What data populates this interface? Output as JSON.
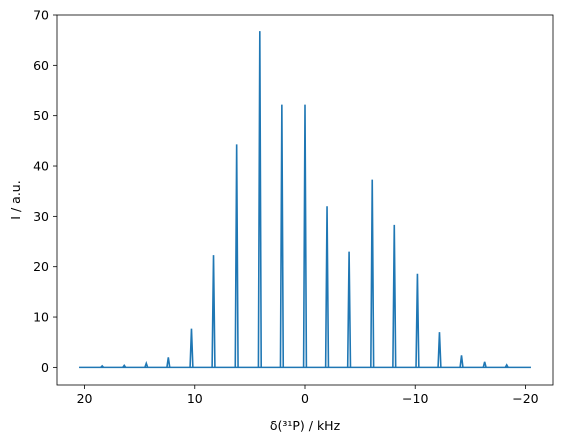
{
  "chart_data": {
    "type": "line",
    "title": "",
    "xlabel": "δ(³¹P) / kHz",
    "ylabel": "I / a.u.",
    "xlim": [
      22.5,
      -22.5
    ],
    "ylim": [
      -3.5,
      70
    ],
    "x_ticks": [
      20,
      10,
      0,
      -10,
      -20
    ],
    "x_tick_labels": [
      "20",
      "10",
      "0",
      "−10",
      "−20"
    ],
    "y_ticks": [
      0,
      10,
      20,
      30,
      40,
      50,
      60,
      70
    ],
    "y_tick_labels": [
      "0",
      "10",
      "20",
      "30",
      "40",
      "50",
      "60",
      "70"
    ],
    "grid": false,
    "line_color": "#1f77b4",
    "baseline": {
      "x_start": 20.5,
      "x_end": -20.5,
      "value": 0
    },
    "series": [
      {
        "x": [
          18.4,
          16.4,
          14.4,
          12.4,
          10.3,
          8.3,
          6.2,
          4.1,
          2.1,
          0.0,
          -2.0,
          -4.0,
          -6.1,
          -8.1,
          -10.2,
          -12.2,
          -14.2,
          -16.3,
          -18.3
        ],
        "values": [
          0.3,
          0.4,
          0.8,
          2.0,
          7.7,
          22.3,
          44.3,
          66.8,
          52.2,
          52.2,
          32.0,
          23.0,
          37.3,
          28.3,
          18.6,
          7.0,
          2.4,
          1.1,
          0.5
        ]
      }
    ]
  }
}
